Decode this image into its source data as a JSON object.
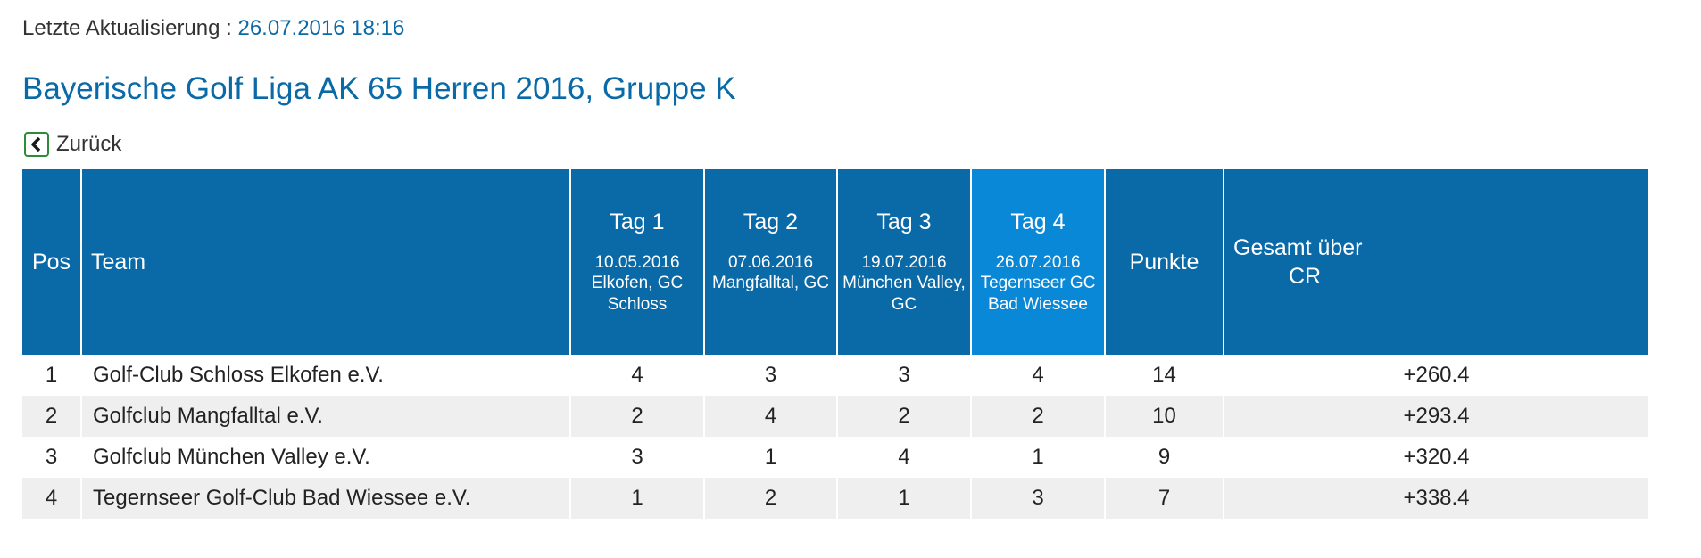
{
  "update": {
    "label": "Letzte Aktualisierung : ",
    "date": "26.07.2016 18:16"
  },
  "title": "Bayerische Golf Liga AK 65 Herren 2016, Gruppe K",
  "back": {
    "label": "Zurück",
    "icon": "chevron-left-icon"
  },
  "colors": {
    "header_bg": "#0a6aa8",
    "current_day_bg": "#0a88d8",
    "link": "#0a6aa8",
    "alt_row": "#efefef"
  },
  "table": {
    "headers": {
      "pos": "Pos",
      "team": "Team",
      "days": [
        {
          "label": "Tag 1",
          "date": "10.05.2016",
          "venue_line1": "Elkofen, GC",
          "venue_line2": "Schloss"
        },
        {
          "label": "Tag 2",
          "date": "07.06.2016",
          "venue_line1": "Mangfalltal, GC",
          "venue_line2": ""
        },
        {
          "label": "Tag 3",
          "date": "19.07.2016",
          "venue_line1": "München Valley,",
          "venue_line2": "GC"
        },
        {
          "label": "Tag 4",
          "date": "26.07.2016",
          "venue_line1": "Tegernseer GC",
          "venue_line2": "Bad Wiessee"
        }
      ],
      "punkte": "Punkte",
      "gesamt_line1": "Gesamt über",
      "gesamt_line2": "CR"
    },
    "rows": [
      {
        "pos": "1",
        "team": "Golf-Club Schloss Elkofen e.V.",
        "tag1": "4",
        "tag2": "3",
        "tag3": "3",
        "tag4": "4",
        "punkte": "14",
        "gesamt": "+260.4"
      },
      {
        "pos": "2",
        "team": "Golfclub Mangfalltal e.V.",
        "tag1": "2",
        "tag2": "4",
        "tag3": "2",
        "tag4": "2",
        "punkte": "10",
        "gesamt": "+293.4"
      },
      {
        "pos": "3",
        "team": "Golfclub München Valley e.V.",
        "tag1": "3",
        "tag2": "1",
        "tag3": "4",
        "tag4": "1",
        "punkte": "9",
        "gesamt": "+320.4"
      },
      {
        "pos": "4",
        "team": "Tegernseer Golf-Club Bad Wiessee e.V.",
        "tag1": "1",
        "tag2": "2",
        "tag3": "1",
        "tag4": "3",
        "punkte": "7",
        "gesamt": "+338.4"
      }
    ]
  }
}
